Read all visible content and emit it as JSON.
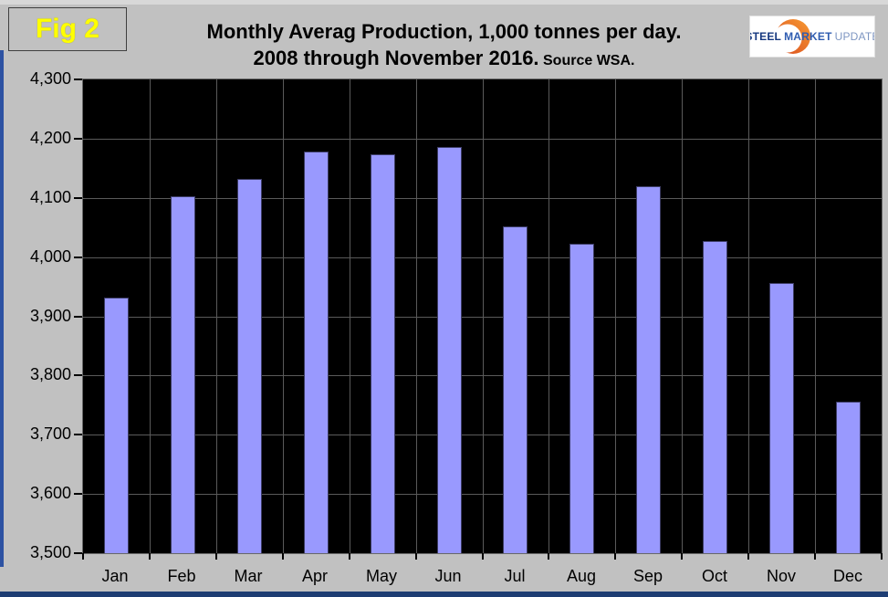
{
  "header": {
    "fig_label": "Fig 2",
    "title_line1": "Monthly Averag Production, 1,000 tonnes per day.",
    "title_line2": "2008 through November 2016.",
    "source_note": "Source WSA."
  },
  "logo": {
    "word1": "STEEL",
    "word2": "MARKET",
    "word3": "UPDATE",
    "crescent_color": "#ee7420",
    "crescent_color_dark": "#d9491d"
  },
  "colors": {
    "page_bg": "#c1c1c1",
    "plot_bg": "#000000",
    "bar_fill": "#9999fe",
    "gridline": "#5a5a5a",
    "fig_label_color": "#ffff00",
    "edge_strip_blue": "#2d52a2"
  },
  "chart_data": {
    "type": "bar",
    "title": "Monthly Averag Production, 1,000 tonnes per day. 2008 through November 2016. Source WSA.",
    "categories": [
      "Jan",
      "Feb",
      "Mar",
      "Apr",
      "May",
      "Jun",
      "Jul",
      "Aug",
      "Sep",
      "Oct",
      "Nov",
      "Dec"
    ],
    "values": [
      3931,
      4102,
      4132,
      4178,
      4173,
      4186,
      4052,
      4022,
      4119,
      4027,
      3956,
      3756
    ],
    "xlabel": "",
    "ylabel": "",
    "ylim": [
      3500,
      4300
    ],
    "ytick_step": 100,
    "ytick_values": [
      3500,
      3600,
      3700,
      3800,
      3900,
      4000,
      4100,
      4200,
      4300
    ],
    "ytick_labels": [
      "3,500",
      "3,600",
      "3,700",
      "3,800",
      "3,900",
      "4,000",
      "4,100",
      "4,200",
      "4,300"
    ],
    "grid": true,
    "legend": false
  }
}
